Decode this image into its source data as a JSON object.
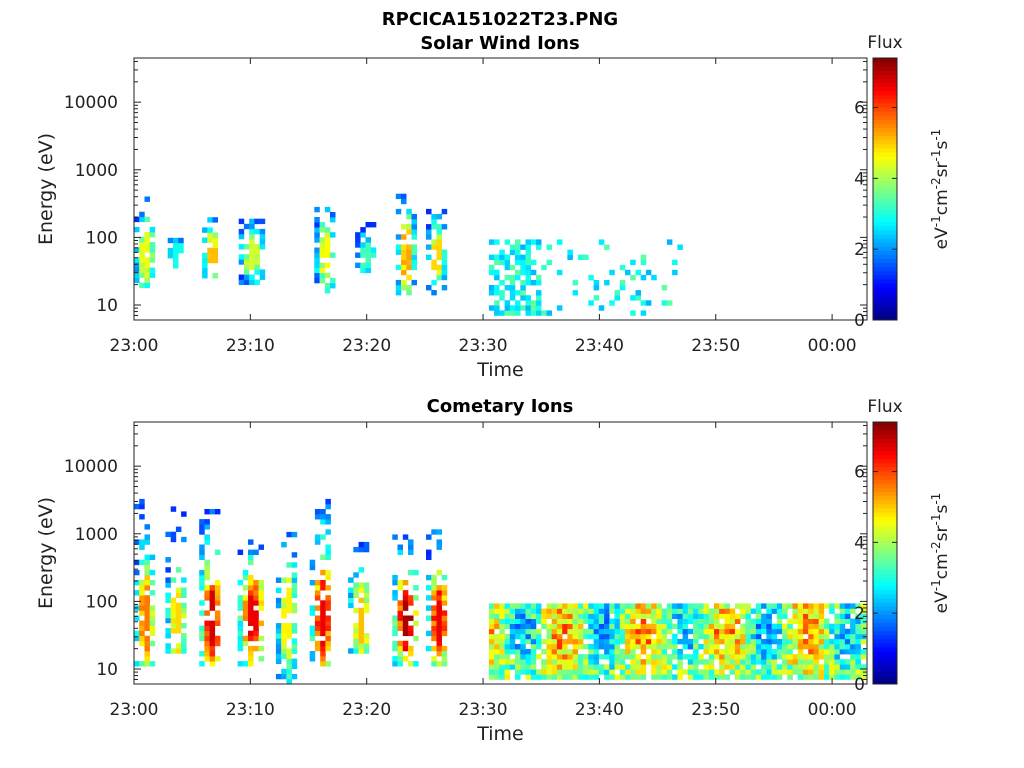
{
  "figure": {
    "title": "RPCICA151022T23.PNG"
  },
  "chart_data": [
    {
      "type": "heatmap",
      "title": "Solar Wind Ions",
      "xlabel": "Time",
      "ylabel": "Energy (eV)",
      "y_scale": "log",
      "ylim": [
        6,
        45000
      ],
      "xlim": [
        "23:00",
        "00:03"
      ],
      "x_ticks": [
        "23:00",
        "23:10",
        "23:20",
        "23:30",
        "23:40",
        "23:50",
        "00:00"
      ],
      "y_ticks": [
        "10",
        "100",
        "1000",
        "10000"
      ],
      "colorbar": {
        "label": "Flux",
        "units": "eV-1cm-2sr-1s-1",
        "range": [
          0,
          7.4
        ],
        "ticks": [
          "0",
          "2",
          "4",
          "6"
        ],
        "colormap": "jet"
      },
      "bursts": [
        {
          "t": 0.8,
          "w": 1.6,
          "e_lo": 18,
          "e_hi": 450,
          "peak": 4.2
        },
        {
          "t": 3.5,
          "w": 1.2,
          "e_lo": 35,
          "e_hi": 90,
          "peak": 2.6
        },
        {
          "t": 6.5,
          "w": 1.3,
          "e_lo": 25,
          "e_hi": 300,
          "peak": 4.8
        },
        {
          "t": 10.0,
          "w": 2.0,
          "e_lo": 20,
          "e_hi": 170,
          "peak": 4.0
        },
        {
          "t": 16.3,
          "w": 1.6,
          "e_lo": 15,
          "e_hi": 330,
          "peak": 4.3
        },
        {
          "t": 19.8,
          "w": 1.6,
          "e_lo": 30,
          "e_hi": 160,
          "peak": 3.0
        },
        {
          "t": 23.2,
          "w": 1.4,
          "e_lo": 14,
          "e_hi": 480,
          "peak": 5.0
        },
        {
          "t": 25.8,
          "w": 1.4,
          "e_lo": 14,
          "e_hi": 240,
          "peak": 4.6
        }
      ],
      "continuous": {
        "t_start": 30.5,
        "t_end": 46.8,
        "e_lo": 7,
        "e_hi": 80,
        "peak": 3.8
      }
    },
    {
      "type": "heatmap",
      "title": "Cometary Ions",
      "xlabel": "Time",
      "ylabel": "Energy (eV)",
      "y_scale": "log",
      "ylim": [
        6,
        45000
      ],
      "xlim": [
        "23:00",
        "00:03"
      ],
      "x_ticks": [
        "23:00",
        "23:10",
        "23:20",
        "23:30",
        "23:40",
        "23:50",
        "00:00"
      ],
      "y_ticks": [
        "10",
        "100",
        "1000",
        "10000"
      ],
      "colorbar": {
        "label": "Flux",
        "units": "eV-1cm-2sr-1s-1",
        "range": [
          0,
          7.4
        ],
        "ticks": [
          "0",
          "2",
          "4",
          "6"
        ],
        "colormap": "jet"
      },
      "bursts": [
        {
          "t": 0.8,
          "w": 1.6,
          "e_lo": 11,
          "e_hi": 2800,
          "peak": 5.3
        },
        {
          "t": 3.5,
          "w": 1.6,
          "e_lo": 17,
          "e_hi": 2800,
          "peak": 4.6
        },
        {
          "t": 6.5,
          "w": 1.8,
          "e_lo": 11,
          "e_hi": 2600,
          "peak": 6.5
        },
        {
          "t": 10.0,
          "w": 2.2,
          "e_lo": 11,
          "e_hi": 1100,
          "peak": 6.3
        },
        {
          "t": 13.0,
          "w": 1.6,
          "e_lo": 6,
          "e_hi": 1100,
          "peak": 4.4
        },
        {
          "t": 16.0,
          "w": 1.8,
          "e_lo": 11,
          "e_hi": 5500,
          "peak": 6.3
        },
        {
          "t": 19.3,
          "w": 1.8,
          "e_lo": 17,
          "e_hi": 900,
          "peak": 4.8
        },
        {
          "t": 23.2,
          "w": 2.0,
          "e_lo": 11,
          "e_hi": 900,
          "peak": 6.8
        },
        {
          "t": 26.0,
          "w": 1.8,
          "e_lo": 11,
          "e_hi": 1100,
          "peak": 6.3
        }
      ],
      "continuous": {
        "t_start": 30.5,
        "t_end": 62.5,
        "e_lo": 7,
        "e_hi": 80,
        "peak": 6.2
      }
    }
  ]
}
